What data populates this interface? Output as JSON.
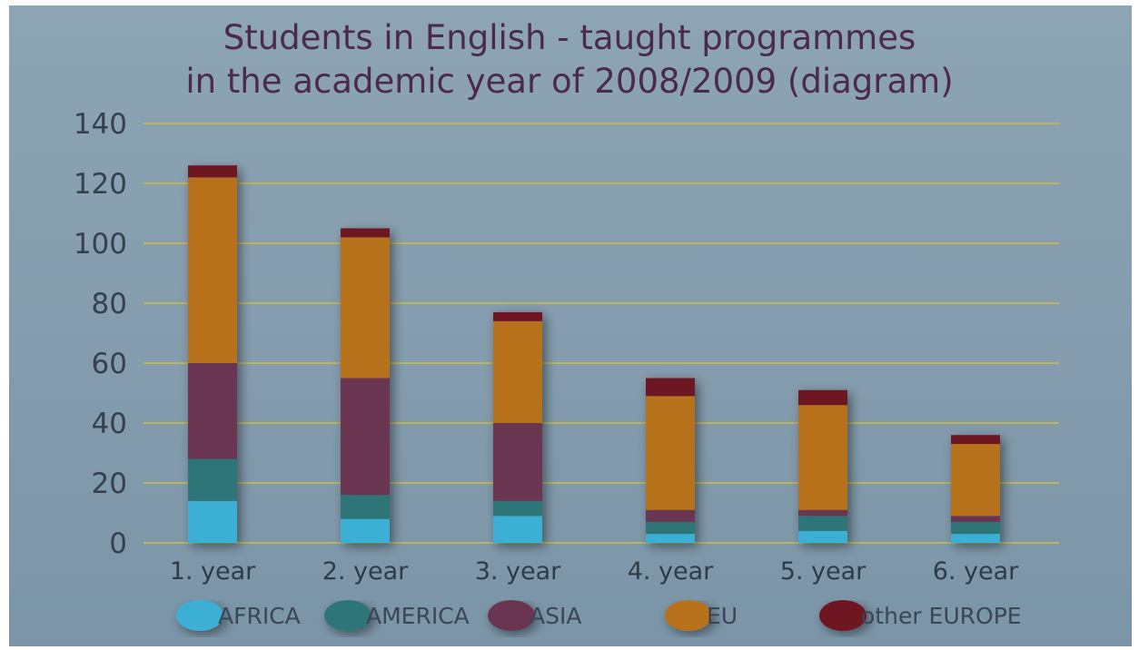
{
  "chart_data": {
    "type": "bar",
    "stacked": true,
    "title_lines": [
      "Students in English - taught programmes",
      "in the academic year of 2008/2009 (diagram)"
    ],
    "categories": [
      "1. year",
      "2. year",
      "3. year",
      "4. year",
      "5. year",
      "6. year"
    ],
    "yticks": [
      "0",
      "20",
      "40",
      "60",
      "80",
      "100",
      "120",
      "140"
    ],
    "ylim": [
      0,
      140
    ],
    "grid": true,
    "legend_position": "bottom",
    "series": [
      {
        "name": "AFRICA",
        "color": "#3ab0d4",
        "values": [
          14,
          8,
          9,
          3,
          4,
          3
        ]
      },
      {
        "name": "AMERICA",
        "color": "#2f7478",
        "values": [
          14,
          8,
          5,
          4,
          5,
          4
        ]
      },
      {
        "name": "ASIA",
        "color": "#6a3651",
        "values": [
          32,
          39,
          26,
          4,
          2,
          2
        ]
      },
      {
        "name": "EU",
        "color": "#b8721f",
        "values": [
          62,
          47,
          34,
          38,
          35,
          24
        ]
      },
      {
        "name": "other EUROPE",
        "color": "#6e1220",
        "values": [
          4,
          3,
          3,
          6,
          5,
          3
        ]
      }
    ]
  }
}
